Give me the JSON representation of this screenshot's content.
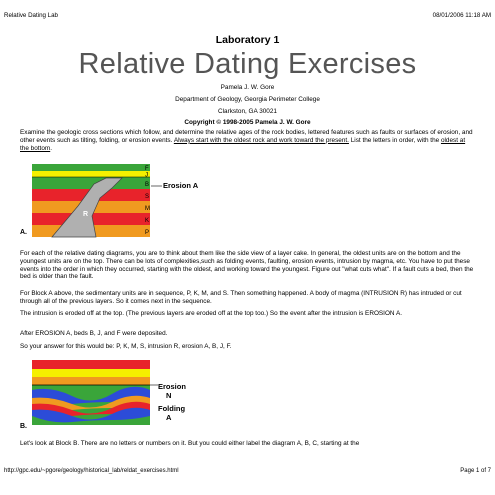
{
  "header": {
    "left": "Relative Dating Lab",
    "right": "08/01/2006 11:18 AM"
  },
  "lab_number": "Laboratory 1",
  "title": "Relative Dating Exercises",
  "author": "Pamela J. W. Gore",
  "department": "Department of Geology, Georgia Perimeter College",
  "location": "Clarkston, GA 30021",
  "copyright": "Copyright © 1998-2005 Pamela J. W. Gore",
  "intro": {
    "text1": "Examine the geologic cross sections which follow, and determine the relative ages of the rock bodies, lettered features such as faults or surfaces of erosion, and other events such as tilting, folding, or erosion events. ",
    "link1": "Always start with the oldest rock and work toward the present.",
    "text2": " List the letters in order, with the ",
    "link2": "oldest at the bottom",
    "text3": "."
  },
  "block_a": {
    "label": "A.",
    "erosion_label": "Erosion A",
    "intrusion_label": "R",
    "layer_letters": [
      "F",
      "J",
      "B",
      "S",
      "M",
      "K",
      "P"
    ],
    "colors": {
      "green": "#3aa53a",
      "yellow": "#f5f000",
      "red": "#e8232b",
      "orange": "#f09a20",
      "intrusion": "#b0b0b0"
    }
  },
  "para1": "For each of the relative dating diagrams, you are to think about them like the side view of a layer cake. In general, the oldest units are on the bottom and the youngest units are on the top. There can be lots of complexities,such as folding events, faulting, erosion events, intrusion by magma, etc. You have to put these events into the order in which they occurred, starting with the oldest, and working toward the youngest. Figure out \"what cuts what\". If a fault cuts a bed, then the bed is older than the fault.",
  "para2": "For Block A above, the sedimentary units are in sequence, P, K, M, and S. Then something happened. A body of magma (INTRUSION R) has intruded or cut through all of the previous layers. So it comes next in the sequence.",
  "para3": "The intrusion is eroded off at the top. (The previous layers are eroded off at the top too.) So the event after the intrusion is EROSION A.",
  "para4": "After EROSION A, beds B, J, and F were deposited.",
  "para5": "So your answer for this would be: P, K, M, S, intrusion R, erosion A, B, J, F.",
  "block_b": {
    "label": "B.",
    "erosion_label_1": "Erosion",
    "erosion_label_2": "N",
    "folding_label_1": "Folding",
    "folding_label_2": "A"
  },
  "para6": "Let's look at Block B. There are no letters or numbers on it. But you could either label the diagram A, B, C, starting at the",
  "footer": {
    "left": "http://gpc.edu/~pgore/geology/historical_lab/reldat_exercises.html",
    "right": "Page 1 of 7"
  }
}
